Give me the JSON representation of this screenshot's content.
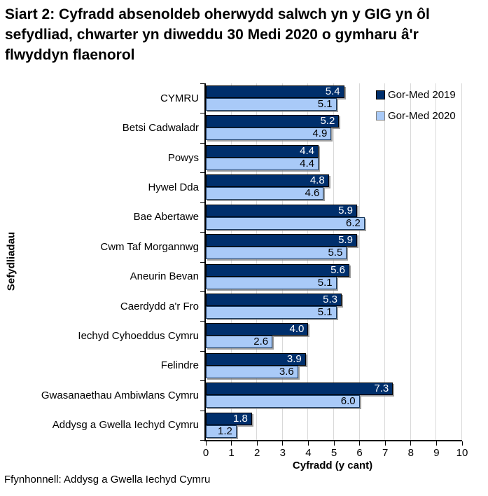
{
  "title": "Siart 2: Cyfradd absenoldeb oherwydd salwch yn y GIG yn ôl sefydliad, chwarter yn diweddu 30 Medi 2020 o gymharu â'r flwyddyn flaenorol",
  "source": "Ffynhonnell: Addysg a Gwella Iechyd Cymru",
  "chart_data": {
    "type": "bar",
    "orientation": "horizontal",
    "xlabel": "Cyfradd (y cant)",
    "ylabel": "Sefydliadau",
    "xlim": [
      0,
      10
    ],
    "xticks": [
      0,
      1,
      2,
      3,
      4,
      5,
      6,
      7,
      8,
      9,
      10
    ],
    "grid": true,
    "grid_color": "#D9D9D9",
    "axis_color": "#000000",
    "legend_position": "top-right-inside",
    "categories": [
      "CYMRU",
      "Betsi Cadwaladr",
      "Powys",
      "Hywel Dda",
      "Bae Abertawe",
      "Cwm Taf Morgannwg",
      "Aneurin Bevan",
      "Caerdydd a'r Fro",
      "Iechyd Cyhoeddus Cymru",
      "Felindre",
      "Gwasanaethau Ambiwlans Cymru",
      "Addysg a Gwella Iechyd Cymru"
    ],
    "series": [
      {
        "name": "Gor-Med 2019",
        "color": "#002F6C",
        "border_color": "#000000",
        "label_color": "#FFFFFF",
        "values": [
          5.4,
          5.2,
          4.4,
          4.8,
          5.9,
          5.9,
          5.6,
          5.3,
          4.0,
          3.9,
          7.3,
          1.8
        ]
      },
      {
        "name": "Gor-Med 2020",
        "color": "#A9CAF8",
        "border_color": "#17375E",
        "label_color": "#000000",
        "values": [
          5.1,
          4.9,
          4.4,
          4.6,
          6.2,
          5.5,
          5.1,
          5.1,
          2.6,
          3.6,
          6.0,
          1.2
        ]
      }
    ]
  }
}
